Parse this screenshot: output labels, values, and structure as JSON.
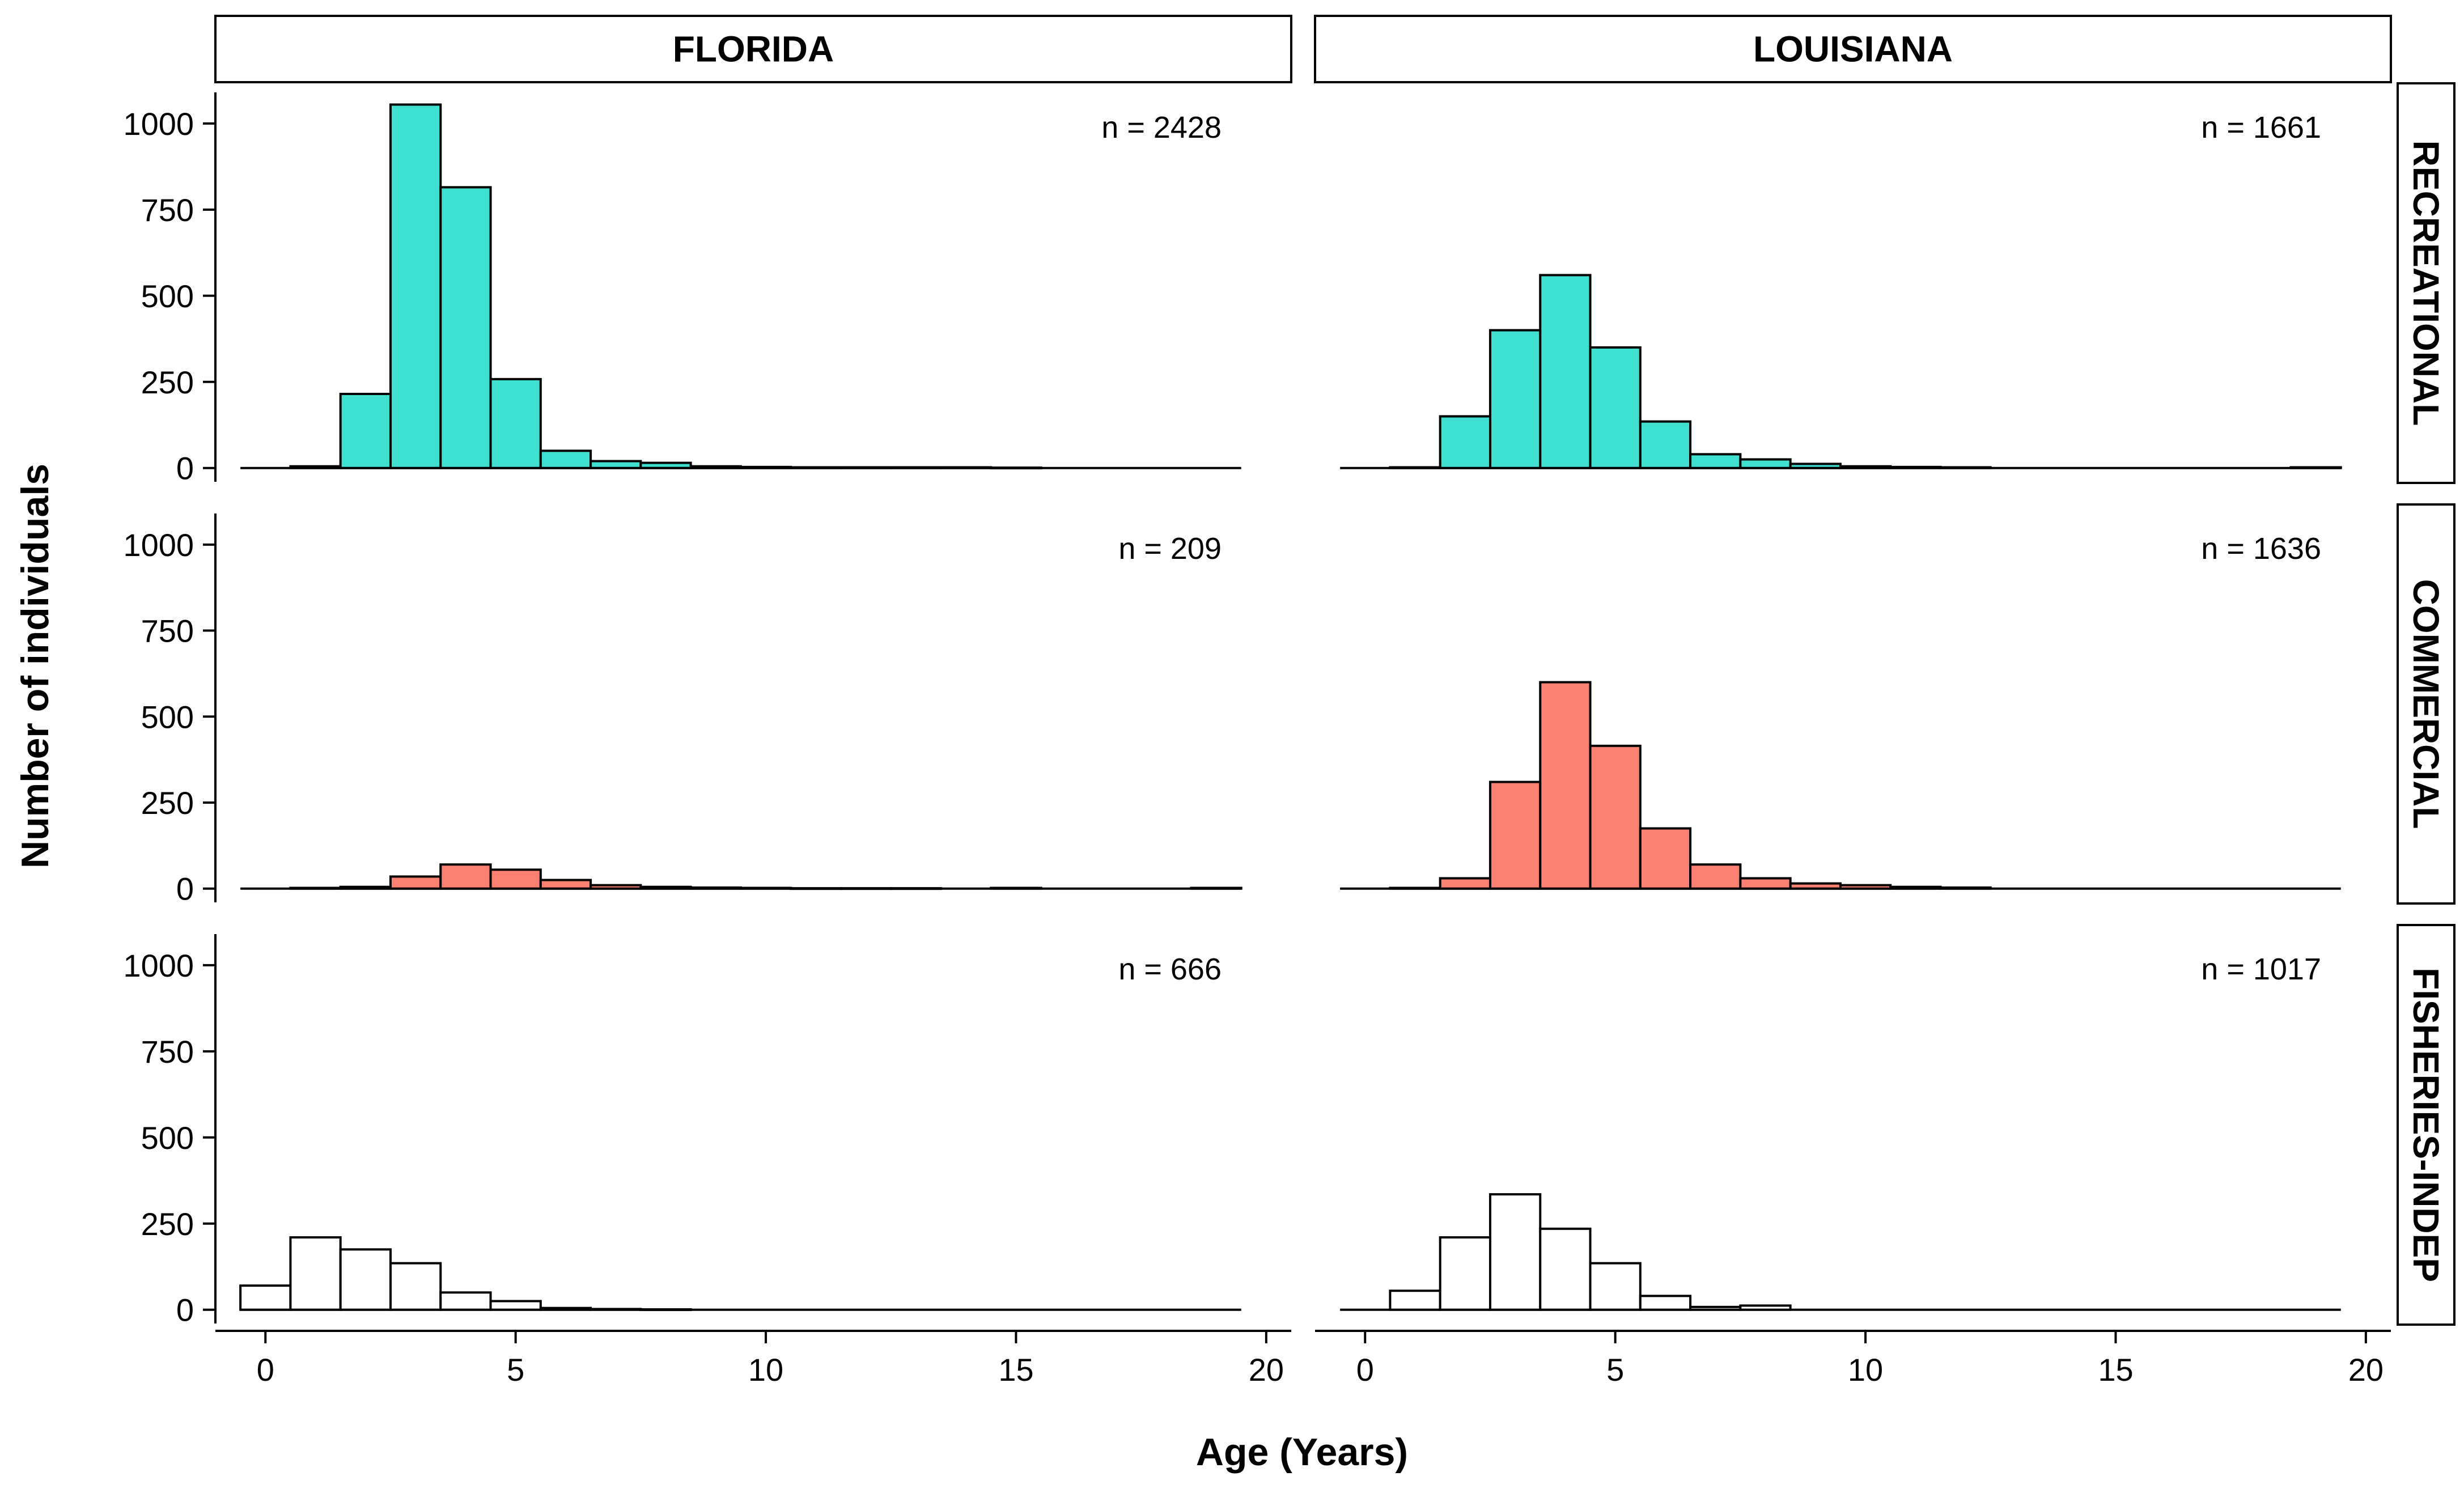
{
  "chart_data": {
    "type": "bar",
    "title": "",
    "xlabel": "Age (Years)",
    "ylabel": "Number of individuals",
    "xlim": [
      -1,
      20.5
    ],
    "ylim": [
      -40,
      1120
    ],
    "x_ticks": [
      "0",
      "5",
      "10",
      "15",
      "20"
    ],
    "y_ticks": [
      "0",
      "250",
      "500",
      "750",
      "1000"
    ],
    "columns": [
      "FLORIDA",
      "LOUISIANA"
    ],
    "rows": [
      "RECREATIONAL",
      "COMMERCIAL",
      "FISHERIES-INDEP"
    ],
    "row_colors": {
      "RECREATIONAL": "#40E0D0",
      "COMMERCIAL": "#FA8072",
      "FISHERIES-INDEP": "#FFFFFF"
    },
    "age_bins": [
      0,
      1,
      2,
      3,
      4,
      5,
      6,
      7,
      8,
      9,
      10,
      11,
      12,
      13,
      14,
      15,
      16,
      17,
      18,
      19
    ],
    "panels": [
      {
        "row": "RECREATIONAL",
        "column": "FLORIDA",
        "n_label": "n = 2428",
        "counts": [
          0,
          5,
          215,
          1055,
          815,
          258,
          50,
          20,
          15,
          5,
          3,
          2,
          2,
          2,
          2,
          1,
          0,
          0,
          0,
          0
        ]
      },
      {
        "row": "RECREATIONAL",
        "column": "LOUISIANA",
        "n_label": "n = 1661",
        "counts": [
          0,
          2,
          150,
          400,
          560,
          350,
          135,
          40,
          25,
          12,
          5,
          3,
          2,
          0,
          0,
          0,
          0,
          0,
          0,
          2
        ]
      },
      {
        "row": "COMMERCIAL",
        "column": "FLORIDA",
        "n_label": "n = 209",
        "counts": [
          0,
          2,
          5,
          35,
          70,
          55,
          25,
          10,
          5,
          3,
          2,
          1,
          1,
          1,
          0,
          2,
          0,
          0,
          0,
          2
        ]
      },
      {
        "row": "COMMERCIAL",
        "column": "LOUISIANA",
        "n_label": "n = 1636",
        "counts": [
          0,
          2,
          30,
          310,
          600,
          415,
          175,
          70,
          30,
          15,
          10,
          5,
          3,
          0,
          0,
          0,
          0,
          0,
          0,
          0
        ]
      },
      {
        "row": "FISHERIES-INDEP",
        "column": "FLORIDA",
        "n_label": "n = 666",
        "counts": [
          70,
          210,
          175,
          135,
          50,
          25,
          5,
          2,
          1,
          0,
          0,
          0,
          0,
          0,
          0,
          0,
          0,
          0,
          0,
          0
        ]
      },
      {
        "row": "FISHERIES-INDEP",
        "column": "LOUISIANA",
        "n_label": "n = 1017",
        "counts": [
          0,
          55,
          210,
          335,
          235,
          135,
          40,
          8,
          12,
          0,
          0,
          0,
          0,
          0,
          0,
          0,
          0,
          0,
          0,
          0
        ]
      }
    ]
  }
}
